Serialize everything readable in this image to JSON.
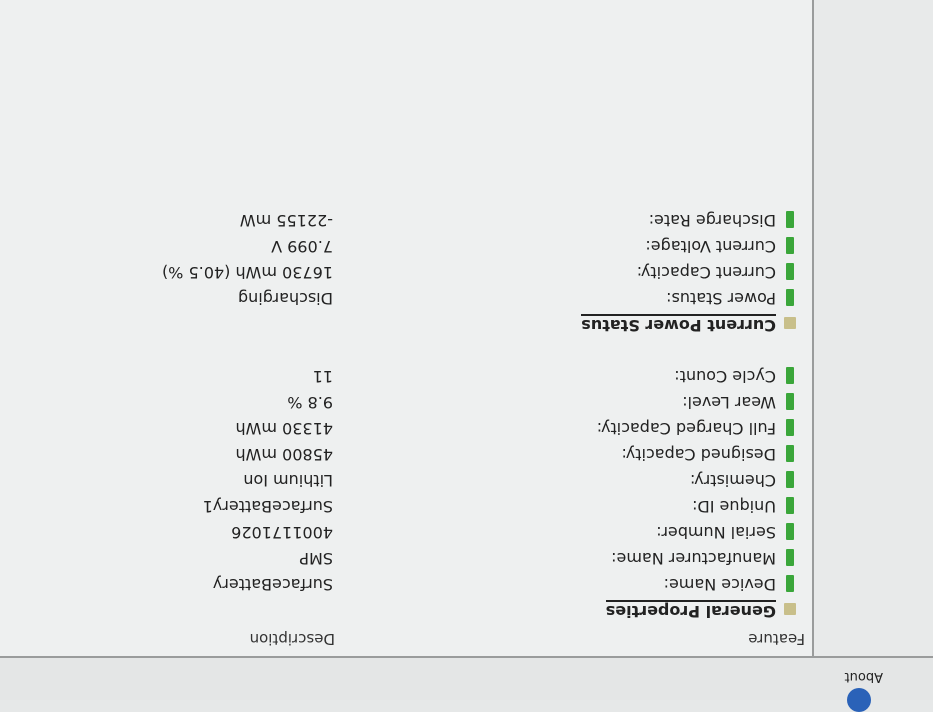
{
  "toolbar": {
    "about_label": "About"
  },
  "columns": {
    "feature": "Feature",
    "description": "Description"
  },
  "groups": [
    {
      "title": "General Properties",
      "rows": [
        {
          "label": "Device Name:",
          "value": "SurfaceBattery"
        },
        {
          "label": "Manufacturer Name:",
          "value": "SMP"
        },
        {
          "label": "Serial Number:",
          "value": "4001171026"
        },
        {
          "label": "Unique ID:",
          "value": "SurfaceBattery1"
        },
        {
          "label": "Chemistry:",
          "value": "Lithium Ion"
        },
        {
          "label": "Designed Capacity:",
          "value": "45800 mWh"
        },
        {
          "label": "Full Charged Capacity:",
          "value": "41330 mWh"
        },
        {
          "label": "Wear Level:",
          "value": "9.8 %"
        },
        {
          "label": "Cycle Count:",
          "value": "11"
        }
      ]
    },
    {
      "title": "Current Power Status",
      "rows": [
        {
          "label": "Power Status:",
          "value": "Discharging"
        },
        {
          "label": "Current Capacity:",
          "value": "16730 mWh (40.5 %)"
        },
        {
          "label": "Current Voltage:",
          "value": "7.099 V"
        },
        {
          "label": "Discharge Rate:",
          "value": "-22155 mW"
        }
      ]
    }
  ]
}
